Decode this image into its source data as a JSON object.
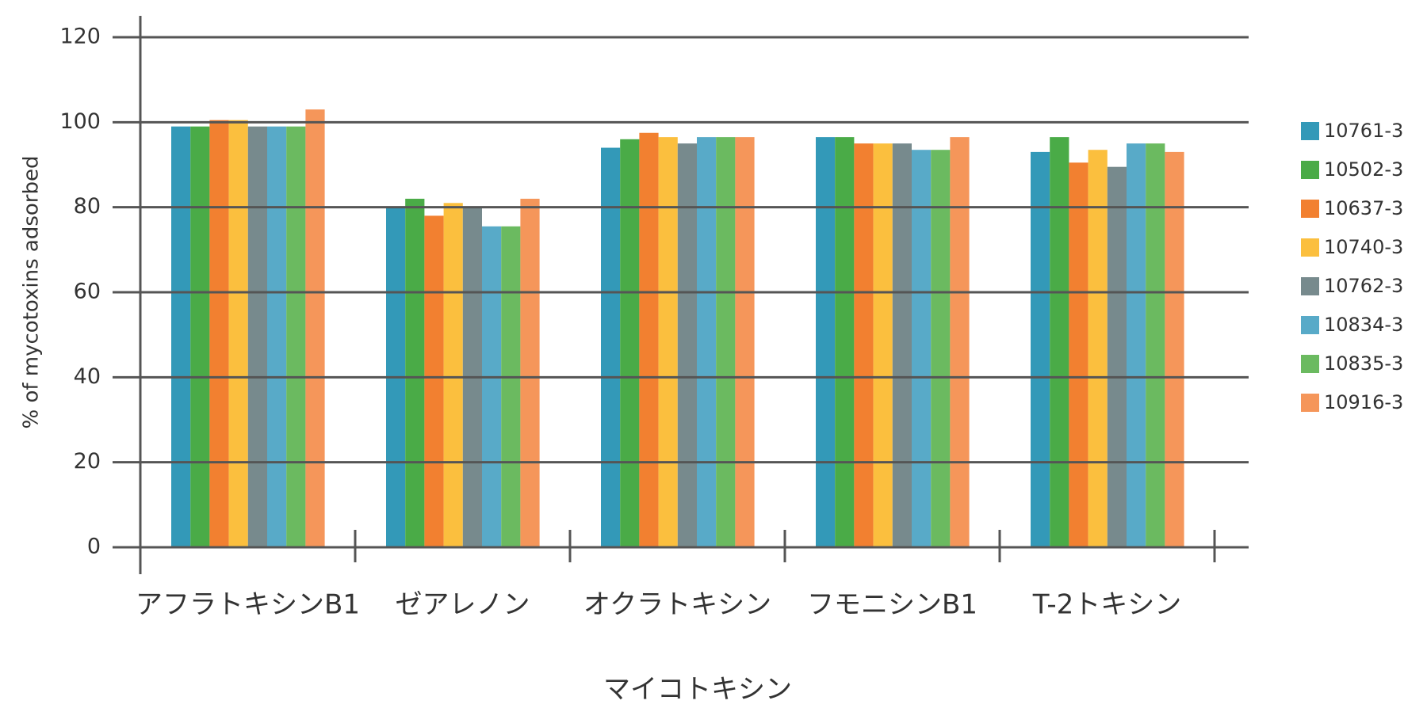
{
  "chart_data": {
    "type": "bar",
    "x_label": "マイコトキシン",
    "y_label": "% of mycotoxins adsorbed",
    "categories": [
      "アフラトキシンB1",
      "ゼアレノン",
      "オクラトキシン",
      "フモニシンB1",
      "T-2トキシン"
    ],
    "series": [
      {
        "name": "10761-3",
        "color": "#3399b8",
        "values": [
          99,
          80,
          94,
          96.5,
          93
        ]
      },
      {
        "name": "10502-3",
        "color": "#4aab47",
        "values": [
          99,
          82,
          96,
          96.5,
          96.5
        ]
      },
      {
        "name": "10637-3",
        "color": "#f28030",
        "values": [
          100.5,
          78,
          97.5,
          95,
          90.5
        ]
      },
      {
        "name": "10740-3",
        "color": "#fbbf3e",
        "values": [
          100.5,
          81,
          96.5,
          95,
          93.5
        ]
      },
      {
        "name": "10762-3",
        "color": "#778a8d",
        "values": [
          99,
          80,
          95,
          95,
          89.5
        ]
      },
      {
        "name": "10834-3",
        "color": "#58aac8",
        "values": [
          99,
          75.5,
          96.5,
          93.5,
          95
        ]
      },
      {
        "name": "10835-3",
        "color": "#6bba60",
        "values": [
          99,
          75.5,
          96.5,
          93.5,
          95
        ]
      },
      {
        "name": "10916-3",
        "color": "#f5965a",
        "values": [
          103,
          82,
          96.5,
          96.5,
          93
        ]
      }
    ],
    "ylim": [
      0,
      120
    ],
    "yticks": [
      0,
      20,
      40,
      60,
      80,
      100,
      120
    ],
    "grid": true,
    "legend": "right"
  }
}
